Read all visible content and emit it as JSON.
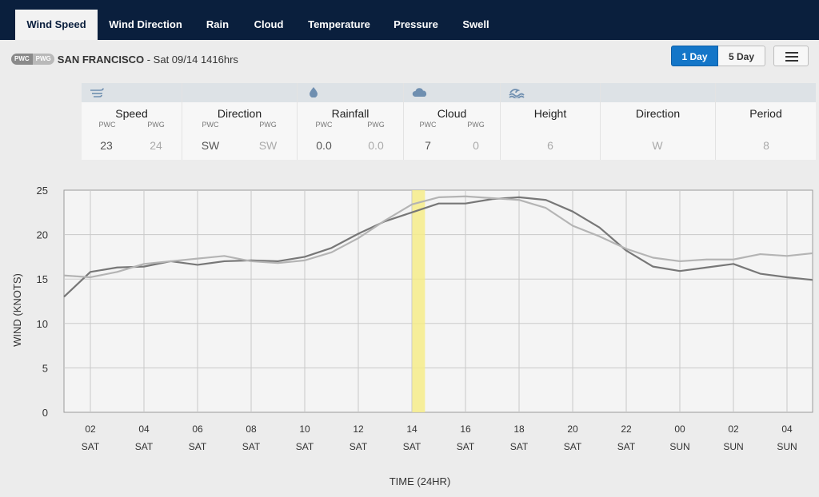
{
  "tabs": [
    {
      "label": "Wind Speed",
      "active": true
    },
    {
      "label": "Wind Direction",
      "active": false
    },
    {
      "label": "Rain",
      "active": false
    },
    {
      "label": "Cloud",
      "active": false
    },
    {
      "label": "Temperature",
      "active": false
    },
    {
      "label": "Pressure",
      "active": false
    },
    {
      "label": "Swell",
      "active": false
    }
  ],
  "location": {
    "badge_left": "PWC",
    "badge_right": "PWG",
    "name": "SAN FRANCISCO",
    "details": " - Sat 09/14 1416hrs"
  },
  "range_buttons": {
    "day1": "1 Day",
    "day5": "5 Day",
    "selected": "1 Day"
  },
  "menu_icon": "hamburger-menu-icon",
  "summary": {
    "groups": [
      {
        "icon": "wind-icon",
        "columns": [
          {
            "title": "Speed",
            "sub": [
              "PWC",
              "PWG"
            ],
            "values": [
              "23",
              "24"
            ]
          },
          {
            "title": "Direction",
            "sub": [
              "PWC",
              "PWG"
            ],
            "values": [
              "SW",
              "SW"
            ]
          }
        ]
      },
      {
        "icon": "raindrop-icon",
        "columns": [
          {
            "title": "Rainfall",
            "sub": [
              "PWC",
              "PWG"
            ],
            "values": [
              "0.0",
              "0.0"
            ]
          }
        ]
      },
      {
        "icon": "cloud-icon",
        "columns": [
          {
            "title": "Cloud",
            "sub": [
              "PWC",
              "PWG"
            ],
            "values": [
              "7",
              "0"
            ]
          }
        ]
      },
      {
        "icon": "wave-icon",
        "columns": [
          {
            "title": "Height",
            "values": [
              "6"
            ]
          },
          {
            "title": "Direction",
            "values": [
              "W"
            ]
          },
          {
            "title": "Period",
            "values": [
              "8"
            ]
          }
        ]
      }
    ]
  },
  "chart_data": {
    "type": "line",
    "xlabel": "TIME (24HR)",
    "ylabel": "WIND (KNOTS)",
    "ylim": [
      0,
      25
    ],
    "yticks": [
      0,
      5,
      10,
      15,
      20,
      25
    ],
    "xlim": [
      0,
      28
    ],
    "x_ticks": [
      {
        "x": 2,
        "hour": "02",
        "day": "SAT"
      },
      {
        "x": 4,
        "hour": "04",
        "day": "SAT"
      },
      {
        "x": 6,
        "hour": "06",
        "day": "SAT"
      },
      {
        "x": 8,
        "hour": "08",
        "day": "SAT"
      },
      {
        "x": 10,
        "hour": "10",
        "day": "SAT"
      },
      {
        "x": 12,
        "hour": "12",
        "day": "SAT"
      },
      {
        "x": 14,
        "hour": "14",
        "day": "SAT"
      },
      {
        "x": 16,
        "hour": "16",
        "day": "SAT"
      },
      {
        "x": 18,
        "hour": "18",
        "day": "SAT"
      },
      {
        "x": 20,
        "hour": "20",
        "day": "SAT"
      },
      {
        "x": 22,
        "hour": "22",
        "day": "SAT"
      },
      {
        "x": 24,
        "hour": "00",
        "day": "SUN"
      },
      {
        "x": 26,
        "hour": "02",
        "day": "SUN"
      },
      {
        "x": 28,
        "hour": "04",
        "day": "SUN"
      }
    ],
    "highlight_x": 14.25,
    "grid": true,
    "series": [
      {
        "color": "#777777",
        "x": [
          1,
          2,
          3,
          4,
          5,
          6,
          7,
          8,
          9,
          10,
          11,
          12,
          13,
          14,
          15,
          16,
          17,
          18,
          19,
          20,
          21,
          22,
          23,
          24,
          25,
          26,
          27,
          28,
          29
        ],
        "y": [
          13,
          15.8,
          16.3,
          16.4,
          17,
          16.6,
          17,
          17.1,
          17,
          17.5,
          18.5,
          20.1,
          21.5,
          22.5,
          23.5,
          23.5,
          24,
          24.2,
          23.9,
          22.6,
          20.8,
          18.2,
          16.4,
          15.9,
          16.3,
          16.7,
          15.6,
          15.2,
          14.9
        ]
      },
      {
        "color": "#b4b4b4",
        "x": [
          1,
          2,
          3,
          4,
          5,
          6,
          7,
          8,
          9,
          10,
          11,
          12,
          13,
          14,
          15,
          16,
          17,
          18,
          19,
          20,
          21,
          22,
          23,
          24,
          25,
          26,
          27,
          28,
          29
        ],
        "y": [
          15.4,
          15.2,
          15.8,
          16.7,
          17,
          17.3,
          17.6,
          17,
          16.8,
          17.1,
          18,
          19.6,
          21.6,
          23.4,
          24.2,
          24.3,
          24.1,
          23.9,
          23,
          21,
          19.8,
          18.4,
          17.4,
          17,
          17.2,
          17.2,
          17.8,
          17.6,
          17.9
        ]
      }
    ]
  }
}
